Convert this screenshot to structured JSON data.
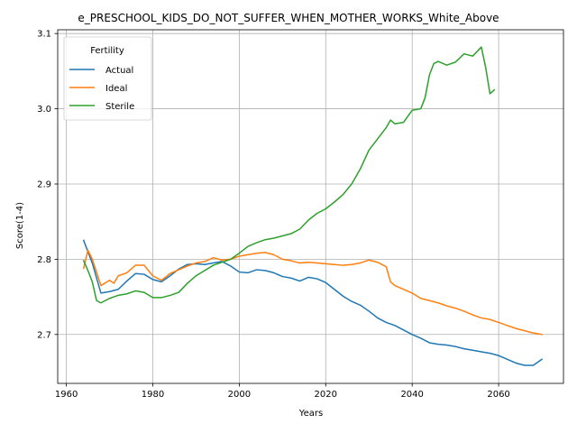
{
  "chart_data": {
    "type": "line",
    "title": "e_PRESCHOOL_KIDS_DO_NOT_SUFFER_WHEN_MOTHER_WORKS_White_Above",
    "xlabel": "Years",
    "ylabel": "Score(1-4)",
    "xlim": [
      1958,
      2075
    ],
    "ylim": [
      2.635,
      3.105
    ],
    "xticks": [
      1960,
      1980,
      2000,
      2020,
      2040,
      2060
    ],
    "yticks": [
      2.7,
      2.8,
      2.9,
      3.0,
      3.1
    ],
    "grid": true,
    "legend": {
      "title": "Fertility",
      "placement": "top-left"
    },
    "series": [
      {
        "name": "Actual",
        "color": "#1f77b4",
        "x": [
          1964,
          1966,
          1968,
          1970,
          1972,
          1974,
          1976,
          1978,
          1980,
          1982,
          1984,
          1986,
          1988,
          1990,
          1992,
          1994,
          1996,
          1998,
          2000,
          2002,
          2004,
          2006,
          2008,
          2010,
          2012,
          2014,
          2016,
          2018,
          2020,
          2022,
          2024,
          2026,
          2028,
          2030,
          2032,
          2034,
          2036,
          2038,
          2040,
          2042,
          2044,
          2046,
          2048,
          2050,
          2052,
          2054,
          2056,
          2058,
          2060,
          2062,
          2064,
          2066,
          2068,
          2070
        ],
        "y": [
          2.825,
          2.795,
          2.755,
          2.757,
          2.76,
          2.771,
          2.781,
          2.78,
          2.773,
          2.77,
          2.778,
          2.787,
          2.793,
          2.794,
          2.793,
          2.795,
          2.797,
          2.791,
          2.783,
          2.782,
          2.786,
          2.785,
          2.782,
          2.777,
          2.775,
          2.771,
          2.776,
          2.774,
          2.769,
          2.76,
          2.751,
          2.744,
          2.739,
          2.731,
          2.722,
          2.716,
          2.712,
          2.706,
          2.7,
          2.695,
          2.689,
          2.687,
          2.686,
          2.684,
          2.681,
          2.679,
          2.677,
          2.675,
          2.672,
          2.667,
          2.662,
          2.659,
          2.659,
          2.667
        ]
      },
      {
        "name": "Ideal",
        "color": "#ff7f0e",
        "x": [
          1964,
          1965,
          1966,
          1968,
          1970,
          1971,
          1972,
          1974,
          1976,
          1978,
          1980,
          1982,
          1984,
          1986,
          1988,
          1990,
          1992,
          1994,
          1996,
          1998,
          2000,
          2002,
          2004,
          2006,
          2008,
          2010,
          2012,
          2014,
          2016,
          2018,
          2020,
          2022,
          2024,
          2026,
          2028,
          2030,
          2032,
          2034,
          2035,
          2036,
          2038,
          2040,
          2042,
          2044,
          2046,
          2048,
          2050,
          2052,
          2054,
          2056,
          2058,
          2060,
          2062,
          2064,
          2066,
          2068,
          2070
        ],
        "y": [
          2.788,
          2.812,
          2.8,
          2.765,
          2.772,
          2.768,
          2.778,
          2.782,
          2.792,
          2.792,
          2.778,
          2.772,
          2.781,
          2.786,
          2.791,
          2.795,
          2.797,
          2.802,
          2.799,
          2.8,
          2.804,
          2.806,
          2.808,
          2.809,
          2.806,
          2.8,
          2.798,
          2.795,
          2.796,
          2.795,
          2.794,
          2.793,
          2.792,
          2.793,
          2.795,
          2.799,
          2.796,
          2.79,
          2.77,
          2.765,
          2.76,
          2.755,
          2.748,
          2.745,
          2.742,
          2.738,
          2.735,
          2.731,
          2.726,
          2.722,
          2.72,
          2.716,
          2.712,
          2.708,
          2.705,
          2.702,
          2.7
        ]
      },
      {
        "name": "Sterile",
        "color": "#2ca02c",
        "x": [
          1964,
          1965,
          1966,
          1967,
          1968,
          1970,
          1972,
          1974,
          1976,
          1978,
          1980,
          1982,
          1984,
          1986,
          1988,
          1990,
          1992,
          1994,
          1996,
          1998,
          2000,
          2002,
          2004,
          2006,
          2008,
          2010,
          2012,
          2014,
          2016,
          2018,
          2020,
          2022,
          2024,
          2026,
          2028,
          2030,
          2032,
          2034,
          2035,
          2036,
          2038,
          2040,
          2042,
          2043,
          2044,
          2045,
          2046,
          2048,
          2050,
          2052,
          2054,
          2056,
          2057,
          2058,
          2059
        ],
        "y": [
          2.798,
          2.785,
          2.77,
          2.745,
          2.742,
          2.748,
          2.752,
          2.754,
          2.758,
          2.756,
          2.749,
          2.749,
          2.752,
          2.756,
          2.768,
          2.778,
          2.785,
          2.792,
          2.796,
          2.8,
          2.808,
          2.817,
          2.822,
          2.826,
          2.828,
          2.831,
          2.834,
          2.84,
          2.852,
          2.861,
          2.867,
          2.876,
          2.886,
          2.9,
          2.92,
          2.945,
          2.96,
          2.975,
          2.985,
          2.98,
          2.982,
          2.998,
          3.0,
          3.015,
          3.045,
          3.06,
          3.063,
          3.058,
          3.062,
          3.073,
          3.07,
          3.082,
          3.055,
          3.02,
          3.025
        ]
      }
    ]
  }
}
